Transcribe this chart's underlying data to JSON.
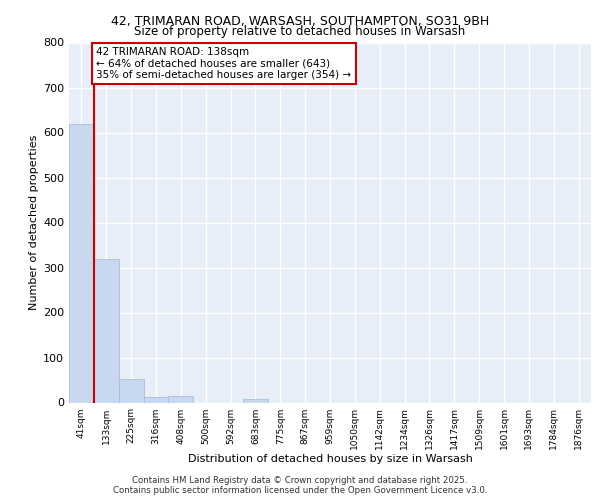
{
  "title_line1": "42, TRIMARAN ROAD, WARSASH, SOUTHAMPTON, SO31 9BH",
  "title_line2": "Size of property relative to detached houses in Warsash",
  "xlabel": "Distribution of detached houses by size in Warsash",
  "ylabel": "Number of detached properties",
  "bar_labels": [
    "41sqm",
    "133sqm",
    "225sqm",
    "316sqm",
    "408sqm",
    "500sqm",
    "592sqm",
    "683sqm",
    "775sqm",
    "867sqm",
    "959sqm",
    "1050sqm",
    "1142sqm",
    "1234sqm",
    "1326sqm",
    "1417sqm",
    "1509sqm",
    "1601sqm",
    "1693sqm",
    "1784sqm",
    "1876sqm"
  ],
  "bar_values": [
    620,
    318,
    52,
    12,
    14,
    0,
    0,
    7,
    0,
    0,
    0,
    0,
    0,
    0,
    0,
    0,
    0,
    0,
    0,
    0,
    0
  ],
  "bar_color": "#c8d8ee",
  "bar_edge_color": "#a0b8d8",
  "vline_x": 0.5,
  "vline_color": "#cc0000",
  "annotation_text": "42 TRIMARAN ROAD: 138sqm\n← 64% of detached houses are smaller (643)\n35% of semi-detached houses are larger (354) →",
  "annotation_box_color": "#cc0000",
  "ylim": [
    0,
    800
  ],
  "yticks": [
    0,
    100,
    200,
    300,
    400,
    500,
    600,
    700,
    800
  ],
  "bg_color": "#e8eef8",
  "grid_color": "#ffffff",
  "footer_line1": "Contains HM Land Registry data © Crown copyright and database right 2025.",
  "footer_line2": "Contains public sector information licensed under the Open Government Licence v3.0."
}
